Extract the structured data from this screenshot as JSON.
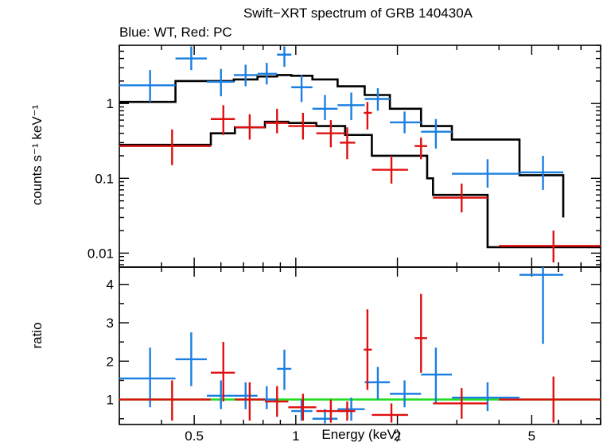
{
  "colors": {
    "wt": "#1a7fe0",
    "pc": "#e01010",
    "model": "#000000",
    "unity": "#22dd22",
    "axis": "#000000"
  },
  "chart_data": [
    {
      "type": "scatter",
      "title": "Swift−XRT spectrum of GRB 140430A",
      "subtitle": "Blue: WT, Red: PC",
      "ylabel": "counts s⁻¹ keV⁻¹",
      "xlabel": "",
      "xscale": "log",
      "yscale": "log",
      "xlim": [
        0.3,
        8.0
      ],
      "ylim": [
        0.0065,
        6.0
      ],
      "yticks": [
        0.01,
        0.1,
        1
      ],
      "ytick_labels": [
        "0.01",
        "0.1",
        "1"
      ],
      "series": [
        {
          "color": "wt",
          "points": [
            {
              "x": 0.37,
              "xlo": 0.3,
              "xhi": 0.44,
              "y": 1.75,
              "ylo": 1.05,
              "yhi": 2.8
            },
            {
              "x": 0.49,
              "xlo": 0.44,
              "xhi": 0.545,
              "y": 4.0,
              "ylo": 2.8,
              "yhi": 5.8
            },
            {
              "x": 0.6,
              "xlo": 0.545,
              "xhi": 0.655,
              "y": 1.95,
              "ylo": 1.25,
              "yhi": 2.9
            },
            {
              "x": 0.71,
              "xlo": 0.655,
              "xhi": 0.77,
              "y": 2.4,
              "ylo": 1.7,
              "yhi": 3.3
            },
            {
              "x": 0.82,
              "xlo": 0.77,
              "xhi": 0.88,
              "y": 2.5,
              "ylo": 1.8,
              "yhi": 3.5
            },
            {
              "x": 0.925,
              "xlo": 0.88,
              "xhi": 0.97,
              "y": 4.5,
              "ylo": 3.1,
              "yhi": 5.8
            },
            {
              "x": 1.04,
              "xlo": 0.97,
              "xhi": 1.12,
              "y": 1.65,
              "ylo": 1.05,
              "yhi": 2.4
            },
            {
              "x": 1.22,
              "xlo": 1.12,
              "xhi": 1.33,
              "y": 0.85,
              "ylo": 0.6,
              "yhi": 1.3
            },
            {
              "x": 1.46,
              "xlo": 1.33,
              "xhi": 1.6,
              "y": 0.95,
              "ylo": 0.6,
              "yhi": 1.4
            },
            {
              "x": 1.75,
              "xlo": 1.6,
              "xhi": 1.9,
              "y": 1.15,
              "ylo": 0.8,
              "yhi": 1.6
            },
            {
              "x": 2.1,
              "xlo": 1.9,
              "xhi": 2.35,
              "y": 0.56,
              "ylo": 0.4,
              "yhi": 0.78
            },
            {
              "x": 2.6,
              "xlo": 2.35,
              "xhi": 2.9,
              "y": 0.42,
              "ylo": 0.25,
              "yhi": 0.62
            },
            {
              "x": 3.7,
              "xlo": 2.9,
              "xhi": 4.6,
              "y": 0.115,
              "ylo": 0.075,
              "yhi": 0.18
            },
            {
              "x": 5.4,
              "xlo": 4.6,
              "xhi": 6.2,
              "y": 0.12,
              "ylo": 0.07,
              "yhi": 0.2
            }
          ]
        },
        {
          "color": "pc",
          "points": [
            {
              "x": 0.43,
              "xlo": 0.3,
              "xhi": 0.56,
              "y": 0.27,
              "ylo": 0.15,
              "yhi": 0.45
            },
            {
              "x": 0.61,
              "xlo": 0.56,
              "xhi": 0.66,
              "y": 0.62,
              "ylo": 0.38,
              "yhi": 0.95
            },
            {
              "x": 0.73,
              "xlo": 0.66,
              "xhi": 0.81,
              "y": 0.48,
              "ylo": 0.33,
              "yhi": 0.72
            },
            {
              "x": 0.88,
              "xlo": 0.81,
              "xhi": 0.95,
              "y": 0.55,
              "ylo": 0.4,
              "yhi": 0.85
            },
            {
              "x": 1.05,
              "xlo": 0.95,
              "xhi": 1.15,
              "y": 0.5,
              "ylo": 0.33,
              "yhi": 0.75
            },
            {
              "x": 1.27,
              "xlo": 1.15,
              "xhi": 1.4,
              "y": 0.4,
              "ylo": 0.26,
              "yhi": 0.6
            },
            {
              "x": 1.42,
              "xlo": 1.35,
              "xhi": 1.5,
              "y": 0.3,
              "ylo": 0.18,
              "yhi": 0.48
            },
            {
              "x": 1.63,
              "xlo": 1.59,
              "xhi": 1.68,
              "y": 0.75,
              "ylo": 0.45,
              "yhi": 1.05
            },
            {
              "x": 1.92,
              "xlo": 1.68,
              "xhi": 2.15,
              "y": 0.13,
              "ylo": 0.085,
              "yhi": 0.2
            },
            {
              "x": 2.35,
              "xlo": 2.25,
              "xhi": 2.45,
              "y": 0.27,
              "ylo": 0.18,
              "yhi": 0.35
            },
            {
              "x": 3.1,
              "xlo": 2.55,
              "xhi": 3.7,
              "y": 0.055,
              "ylo": 0.035,
              "yhi": 0.085
            },
            {
              "x": 5.8,
              "xlo": 4.0,
              "xhi": 8.0,
              "y": 0.0125,
              "ylo": 0.0075,
              "yhi": 0.02
            }
          ]
        }
      ],
      "models": [
        {
          "color": "model",
          "steps": [
            [
              0.3,
              1.05
            ],
            [
              0.44,
              2.0
            ],
            [
              0.545,
              2.0
            ],
            [
              0.655,
              2.1
            ],
            [
              0.77,
              2.3
            ],
            [
              0.88,
              2.4
            ],
            [
              0.97,
              2.35
            ],
            [
              1.12,
              2.1
            ],
            [
              1.33,
              1.7
            ],
            [
              1.6,
              1.3
            ],
            [
              1.9,
              0.85
            ],
            [
              2.35,
              0.5
            ],
            [
              2.9,
              0.33
            ],
            [
              4.6,
              0.11
            ],
            [
              6.2,
              0.03
            ]
          ],
          "x_end": 6.2
        },
        {
          "color": "model",
          "steps": [
            [
              0.3,
              0.28
            ],
            [
              0.56,
              0.4
            ],
            [
              0.66,
              0.48
            ],
            [
              0.81,
              0.57
            ],
            [
              0.95,
              0.55
            ],
            [
              1.15,
              0.5
            ],
            [
              1.4,
              0.38
            ],
            [
              1.68,
              0.2
            ],
            [
              2.15,
              0.2
            ],
            [
              2.45,
              0.1
            ],
            [
              2.55,
              0.06
            ],
            [
              3.7,
              0.012
            ]
          ],
          "x_end": 8.0
        }
      ]
    },
    {
      "type": "scatter",
      "title": "",
      "xlabel": "Energy (keV)",
      "ylabel": "ratio",
      "xscale": "log",
      "yscale": "linear",
      "xlim": [
        0.3,
        8.0
      ],
      "ylim": [
        0.35,
        4.45
      ],
      "yticks": [
        1,
        2,
        3,
        4
      ],
      "ytick_labels": [
        "1",
        "2",
        "3",
        "4"
      ],
      "xticks": [
        0.5,
        1,
        2,
        5
      ],
      "xtick_labels": [
        "0.5",
        "1",
        "2",
        "5"
      ],
      "unity_line": 1.0,
      "series": [
        {
          "color": "wt",
          "points": [
            {
              "x": 0.37,
              "xlo": 0.3,
              "xhi": 0.44,
              "y": 1.55,
              "ylo": 0.8,
              "yhi": 2.35
            },
            {
              "x": 0.49,
              "xlo": 0.44,
              "xhi": 0.545,
              "y": 2.05,
              "ylo": 1.35,
              "yhi": 2.75
            },
            {
              "x": 0.6,
              "xlo": 0.545,
              "xhi": 0.655,
              "y": 1.1,
              "ylo": 0.75,
              "yhi": 1.5
            },
            {
              "x": 0.71,
              "xlo": 0.655,
              "xhi": 0.77,
              "y": 1.1,
              "ylo": 0.75,
              "yhi": 1.45
            },
            {
              "x": 0.82,
              "xlo": 0.77,
              "xhi": 0.88,
              "y": 1.0,
              "ylo": 0.75,
              "yhi": 1.35
            },
            {
              "x": 0.925,
              "xlo": 0.88,
              "xhi": 0.97,
              "y": 1.8,
              "ylo": 1.25,
              "yhi": 2.3
            },
            {
              "x": 1.04,
              "xlo": 0.97,
              "xhi": 1.12,
              "y": 0.7,
              "ylo": 0.45,
              "yhi": 1.0
            },
            {
              "x": 1.22,
              "xlo": 1.12,
              "xhi": 1.33,
              "y": 0.5,
              "ylo": 0.38,
              "yhi": 0.75
            },
            {
              "x": 1.46,
              "xlo": 1.33,
              "xhi": 1.6,
              "y": 0.75,
              "ylo": 0.45,
              "yhi": 1.05
            },
            {
              "x": 1.75,
              "xlo": 1.6,
              "xhi": 1.9,
              "y": 1.45,
              "ylo": 1.0,
              "yhi": 1.85
            },
            {
              "x": 2.1,
              "xlo": 1.9,
              "xhi": 2.35,
              "y": 1.15,
              "ylo": 0.8,
              "yhi": 1.5
            },
            {
              "x": 2.6,
              "xlo": 2.35,
              "xhi": 2.9,
              "y": 1.65,
              "ylo": 0.9,
              "yhi": 2.35
            },
            {
              "x": 3.7,
              "xlo": 2.9,
              "xhi": 4.6,
              "y": 1.05,
              "ylo": 0.7,
              "yhi": 1.45
            },
            {
              "x": 5.4,
              "xlo": 4.6,
              "xhi": 6.2,
              "y": 4.25,
              "ylo": 2.45,
              "yhi": 4.45
            }
          ]
        },
        {
          "color": "pc",
          "points": [
            {
              "x": 0.43,
              "xlo": 0.3,
              "xhi": 0.56,
              "y": 1.0,
              "ylo": 0.45,
              "yhi": 1.5
            },
            {
              "x": 0.61,
              "xlo": 0.56,
              "xhi": 0.66,
              "y": 1.7,
              "ylo": 0.95,
              "yhi": 2.5
            },
            {
              "x": 0.73,
              "xlo": 0.66,
              "xhi": 0.81,
              "y": 1.0,
              "ylo": 0.45,
              "yhi": 1.45
            },
            {
              "x": 0.88,
              "xlo": 0.81,
              "xhi": 0.95,
              "y": 0.95,
              "ylo": 0.55,
              "yhi": 1.35
            },
            {
              "x": 1.05,
              "xlo": 0.95,
              "xhi": 1.15,
              "y": 0.8,
              "ylo": 0.45,
              "yhi": 1.15
            },
            {
              "x": 1.27,
              "xlo": 1.15,
              "xhi": 1.4,
              "y": 0.7,
              "ylo": 0.4,
              "yhi": 1.0
            },
            {
              "x": 1.42,
              "xlo": 1.35,
              "xhi": 1.5,
              "y": 0.7,
              "ylo": 0.45,
              "yhi": 0.95
            },
            {
              "x": 1.63,
              "xlo": 1.59,
              "xhi": 1.68,
              "y": 2.3,
              "ylo": 1.25,
              "yhi": 3.35
            },
            {
              "x": 1.92,
              "xlo": 1.68,
              "xhi": 2.15,
              "y": 0.6,
              "ylo": 0.4,
              "yhi": 0.9
            },
            {
              "x": 2.35,
              "xlo": 2.25,
              "xhi": 2.45,
              "y": 2.6,
              "ylo": 1.7,
              "yhi": 3.75
            },
            {
              "x": 3.1,
              "xlo": 2.55,
              "xhi": 3.7,
              "y": 0.9,
              "ylo": 0.5,
              "yhi": 1.3
            },
            {
              "x": 5.8,
              "xlo": 4.0,
              "xhi": 8.0,
              "y": 1.0,
              "ylo": 0.4,
              "yhi": 1.6
            }
          ]
        }
      ]
    }
  ]
}
